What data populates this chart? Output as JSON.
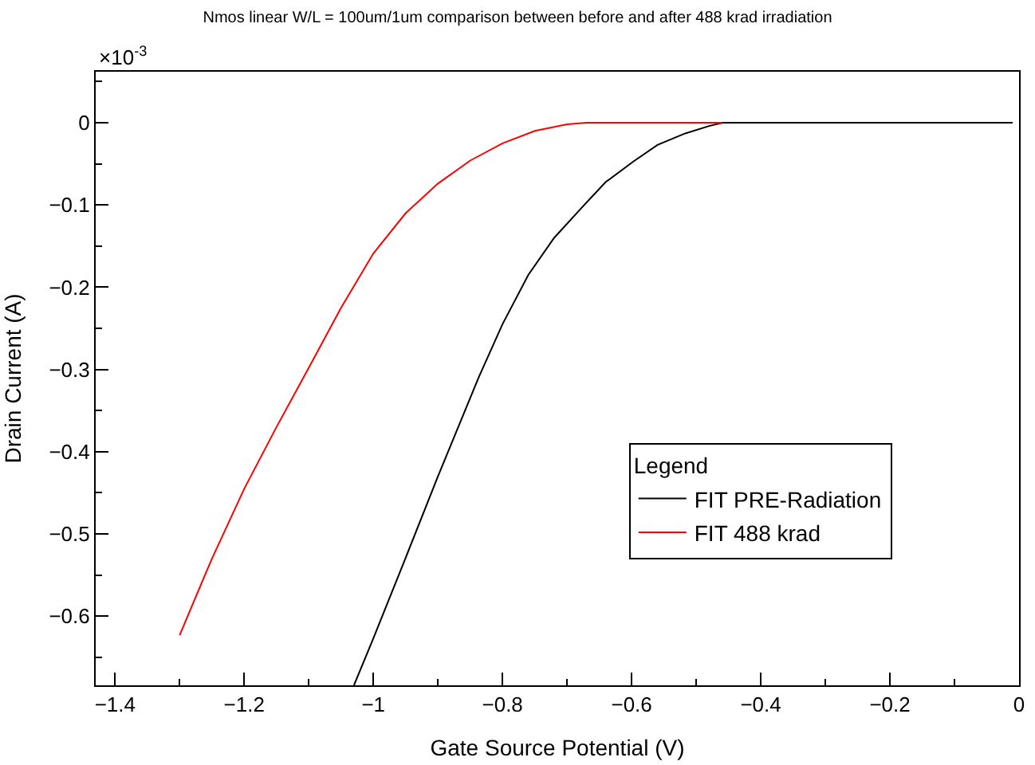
{
  "chart_data": {
    "type": "line",
    "title": "Nmos linear W/L = 100um/1um comparison between before and after 488 krad irradiation",
    "xlabel": "Gate Source Potential (V)",
    "ylabel": "Drain Current (A)",
    "legend_title": "Legend",
    "annotations": [
      "×10$^{-3}$"
    ],
    "series": [
      {
        "name": "FIT PRE-Radiation",
        "color": "#000000",
        "x": [
          -1.03,
          -1.0,
          -0.95,
          -0.9,
          -0.837,
          -0.8,
          -0.76,
          -0.72,
          -0.677,
          -0.64,
          -0.597,
          -0.56,
          -0.517,
          -0.48,
          -0.459,
          -0.4,
          -0.01
        ],
        "values": [
          -0.684,
          -0.627,
          -0.529,
          -0.43,
          -0.31,
          -0.245,
          -0.185,
          -0.14,
          -0.103,
          -0.072,
          -0.047,
          -0.027,
          -0.013,
          -0.004,
          0,
          0,
          0
        ]
      },
      {
        "name": "FIT 488 krad",
        "color": "#ff0000",
        "x": [
          -1.3,
          -1.25,
          -1.2,
          -1.15,
          -1.1,
          -1.05,
          -1.0,
          -0.95,
          -0.9,
          -0.85,
          -0.8,
          -0.75,
          -0.7,
          -0.67,
          -0.46
        ],
        "values": [
          -0.623,
          -0.53,
          -0.445,
          -0.37,
          -0.298,
          -0.225,
          -0.159,
          -0.11,
          -0.074,
          -0.046,
          -0.025,
          -0.01,
          -0.002,
          0,
          0
        ]
      }
    ],
    "xlim": [
      -1.43,
      0.0
    ],
    "xticks": [
      -1.4,
      -1.2,
      -1,
      -0.8,
      -0.6,
      -0.4,
      -0.2,
      0
    ],
    "ylim": [
      -0.684,
      0.062
    ],
    "yticks": [
      -0.6,
      -0.5,
      -0.4,
      -0.3,
      -0.2,
      -0.1,
      0
    ],
    "legend": "right",
    "marker": "none",
    "line_style": "solid"
  }
}
